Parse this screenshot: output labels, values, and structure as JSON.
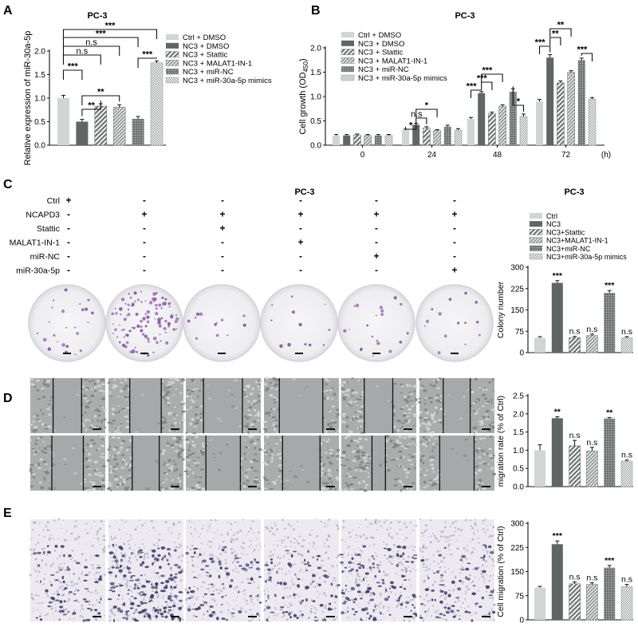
{
  "panels": {
    "A": "A",
    "B": "B",
    "C": "C",
    "D": "D",
    "E": "E"
  },
  "colors": {
    "ctrl": "#cfd6d3",
    "dark": "#5f6664",
    "stripe": "#7a807e",
    "axis": "#111111"
  },
  "chart_data": [
    {
      "id": "A",
      "type": "bar",
      "title": "PC-3",
      "ylabel": "Relative expression of miR-30a-5p",
      "ylim": [
        0,
        2.0
      ],
      "yticks": [
        "0.0",
        "0.5",
        "1.0",
        "1.5",
        "2.0"
      ],
      "series_names": [
        "Ctrl + DMSO",
        "NC3 + DMSO",
        "NC3 + Stattic",
        "NC3 + MALAT1-IN-1",
        "NC3 + miR-NC",
        "NC3 + miR-30a-5p mimics"
      ],
      "values": [
        1.0,
        0.5,
        0.83,
        0.81,
        0.56,
        1.75
      ],
      "errors": [
        0.06,
        0.05,
        0.05,
        0.05,
        0.05,
        0.04
      ],
      "comparisons": [
        {
          "a": 0,
          "b": 1,
          "label": "***"
        },
        {
          "a": 0,
          "b": 2,
          "label": "n.s"
        },
        {
          "a": 0,
          "b": 3,
          "label": "n.s"
        },
        {
          "a": 0,
          "b": 4,
          "label": "***"
        },
        {
          "a": 0,
          "b": 5,
          "label": "***"
        },
        {
          "a": 1,
          "b": 2,
          "label": "**"
        },
        {
          "a": 1,
          "b": 3,
          "label": "**"
        },
        {
          "a": 4,
          "b": 5,
          "label": "***"
        }
      ]
    },
    {
      "id": "B",
      "type": "bar",
      "title": "PC-3",
      "ylabel": "Cell growth (OD",
      "ylabel_sub": "450",
      "ylabel_end": ")",
      "ylim": [
        0,
        2.0
      ],
      "yticks": [
        "0.0",
        "0.5",
        "1.0",
        "1.5",
        "2.0"
      ],
      "categories": [
        "0",
        "24",
        "48",
        "72"
      ],
      "xunit": "(h)",
      "series_names": [
        "Ctrl + DMSO",
        "NC3 + DMSO",
        "NC3 + Stattic",
        "NC3 + MALAT1-IN-1",
        "NC3 + miR-NC",
        "NC3 + miR-30a-5p mimics"
      ],
      "values": [
        [
          0.2,
          0.2,
          0.21,
          0.2,
          0.2,
          0.2
        ],
        [
          0.31,
          0.42,
          0.35,
          0.3,
          0.38,
          0.31
        ],
        [
          0.54,
          1.07,
          0.65,
          0.8,
          1.1,
          0.59
        ],
        [
          0.9,
          1.8,
          1.28,
          1.5,
          1.75,
          0.95
        ]
      ],
      "errors": [
        [
          0.02,
          0.02,
          0.02,
          0.02,
          0.02,
          0.02
        ],
        [
          0.02,
          0.03,
          0.03,
          0.02,
          0.03,
          0.03
        ],
        [
          0.03,
          0.03,
          0.03,
          0.03,
          0.06,
          0.05
        ],
        [
          0.04,
          0.06,
          0.04,
          0.03,
          0.04,
          0.03
        ]
      ],
      "comparisons": [
        {
          "g": 1,
          "a": 0,
          "b": 1,
          "label": "*"
        },
        {
          "g": 1,
          "a": 1,
          "b": 2,
          "label": "n.s"
        },
        {
          "g": 1,
          "a": 1,
          "b": 3,
          "label": "*"
        },
        {
          "g": 2,
          "a": 0,
          "b": 1,
          "label": "***"
        },
        {
          "g": 2,
          "a": 1,
          "b": 2,
          "label": "***"
        },
        {
          "g": 2,
          "a": 1,
          "b": 3,
          "label": "***"
        },
        {
          "g": 2,
          "a": 4,
          "b": 5,
          "label": "*"
        },
        {
          "g": 3,
          "a": 0,
          "b": 1,
          "label": "***"
        },
        {
          "g": 3,
          "a": 1,
          "b": 2,
          "label": "**"
        },
        {
          "g": 3,
          "a": 1,
          "b": 3,
          "label": "**"
        },
        {
          "g": 3,
          "a": 4,
          "b": 5,
          "label": "***"
        }
      ]
    },
    {
      "id": "C",
      "type": "bar",
      "title": "PC-3",
      "ylabel": "Colony number",
      "ylim": [
        0,
        300
      ],
      "yticks": [
        "0",
        "75",
        "150",
        "225",
        "300"
      ],
      "series_names": [
        "Ctrl",
        "NC3",
        "NC3+Stattic",
        "NC3+MALAT1-IN-1",
        "NC3+miR-NC",
        "NC3+miR-30a-5p mimics"
      ],
      "values": [
        52,
        245,
        52,
        60,
        210,
        52
      ],
      "errors": [
        4,
        8,
        5,
        5,
        8,
        4
      ],
      "sig": [
        "",
        "***",
        "n.s",
        "n.s",
        "***",
        "n.s"
      ]
    },
    {
      "id": "D",
      "type": "bar",
      "ylabel": "migration rate (% of Ctrl)",
      "ylim": [
        0,
        2.5
      ],
      "yticks": [
        "0.0",
        "0.5",
        "1.0",
        "1.5",
        "2.0",
        "2.5"
      ],
      "values": [
        1.0,
        1.88,
        1.12,
        0.98,
        1.87,
        0.7
      ],
      "errors": [
        0.15,
        0.04,
        0.15,
        0.1,
        0.03,
        0.03
      ],
      "sig": [
        "",
        "**",
        "n.s",
        "n.s",
        "**",
        "n.s"
      ]
    },
    {
      "id": "E",
      "type": "bar",
      "ylabel": "Cell migration (% of Ctrl)",
      "ylim": [
        0,
        300
      ],
      "yticks": [
        "0",
        "75",
        "150",
        "225",
        "300"
      ],
      "values": [
        100,
        235,
        112,
        110,
        162,
        103
      ],
      "errors": [
        4,
        10,
        6,
        5,
        7,
        7
      ],
      "sig": [
        "",
        "***",
        "n.s",
        "n.s",
        "***",
        "n.s"
      ]
    }
  ],
  "treatment_table": {
    "title": "PC-3",
    "rows": [
      {
        "label": "Ctrl",
        "marks": [
          "+",
          "-",
          "-",
          "-",
          "-",
          "-"
        ]
      },
      {
        "label": "NCAPD3",
        "marks": [
          "-",
          "+",
          "+",
          "+",
          "+",
          "+"
        ]
      },
      {
        "label": "Stattic",
        "marks": [
          "-",
          "-",
          "+",
          "-",
          "-",
          "-"
        ]
      },
      {
        "label": "MALAT1-IN-1",
        "marks": [
          "-",
          "-",
          "-",
          "+",
          "-",
          "-"
        ]
      },
      {
        "label": "miR-NC",
        "marks": [
          "-",
          "-",
          "-",
          "-",
          "+",
          "-"
        ]
      },
      {
        "label": "miR-30a-5p",
        "marks": [
          "-",
          "-",
          "-",
          "-",
          "-",
          "+"
        ]
      }
    ]
  },
  "images": {
    "colony_density": [
      25,
      110,
      12,
      12,
      20,
      14
    ],
    "wound_gap_top": [
      0.38,
      0.42,
      0.52,
      0.58,
      0.38,
      0.36
    ],
    "wound_gap_bottom": [
      0.42,
      0.36,
      0.46,
      0.5,
      0.18,
      0.46
    ],
    "transwell_density": [
      0.3,
      0.75,
      0.32,
      0.32,
      0.5,
      0.32
    ]
  }
}
